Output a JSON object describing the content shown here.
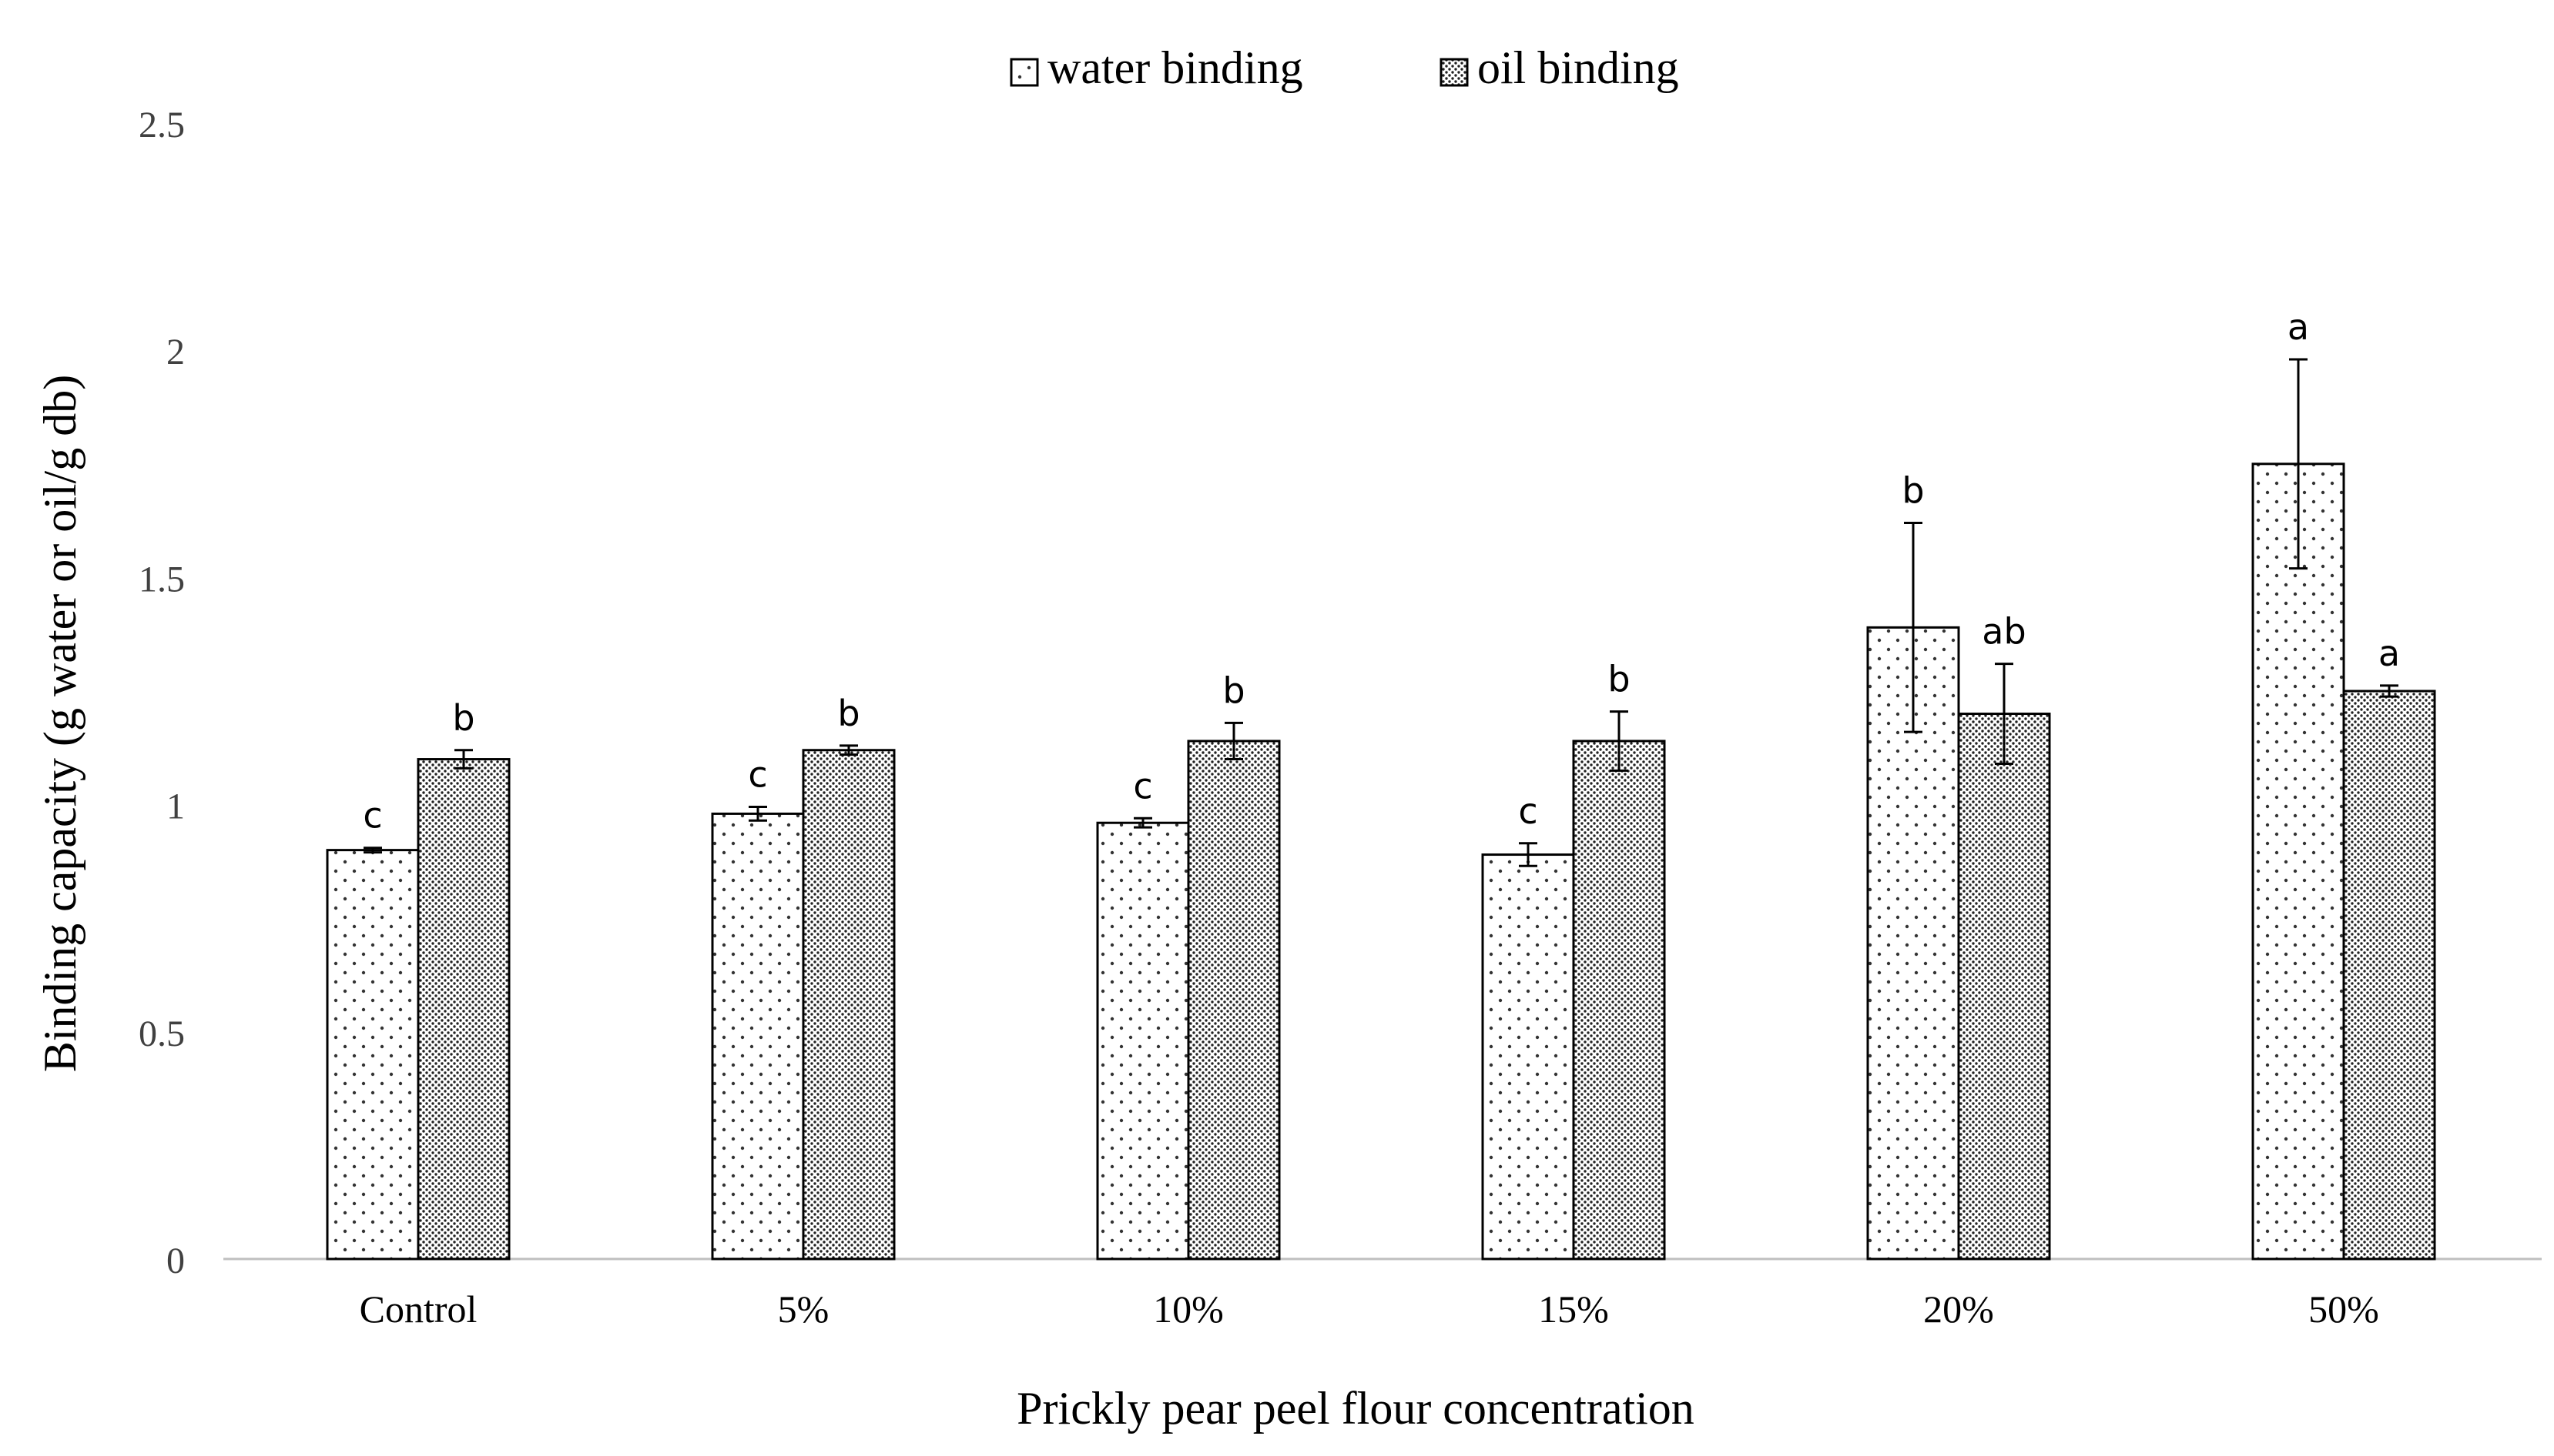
{
  "chart_data": {
    "type": "bar",
    "title": "",
    "xlabel": "Prickly  pear peel flour  concentration",
    "ylabel": "Binding  capacity  (g water or oil/g  db)",
    "ylim": [
      0,
      2.5
    ],
    "yticks": [
      "0",
      "0.5",
      "1",
      "1.5",
      "2",
      "2.5"
    ],
    "ytick_values": [
      0,
      0.5,
      1,
      1.5,
      2,
      2.5
    ],
    "grid": false,
    "legend_position": "top-center",
    "categories": [
      "Control",
      "5%",
      "10%",
      "15%",
      "20%",
      "50%"
    ],
    "series": [
      {
        "name": "water binding",
        "pattern": "sparse-dots",
        "values": [
          0.9,
          0.98,
          0.96,
          0.89,
          1.39,
          1.75
        ],
        "errors": [
          0.005,
          0.015,
          0.01,
          0.025,
          0.23,
          0.23
        ],
        "letters": [
          "c",
          "c",
          "c",
          "c",
          "b",
          "a"
        ]
      },
      {
        "name": "oil binding",
        "pattern": "dense-dots",
        "values": [
          1.1,
          1.12,
          1.14,
          1.14,
          1.2,
          1.25
        ],
        "errors": [
          0.02,
          0.01,
          0.04,
          0.065,
          0.11,
          0.012
        ],
        "letters": [
          "b",
          "b",
          "b",
          "b",
          "ab",
          "a"
        ]
      }
    ],
    "colors": {
      "bar_edge": "#000000",
      "axis": "#bfbfbf",
      "text": "#404040"
    }
  }
}
